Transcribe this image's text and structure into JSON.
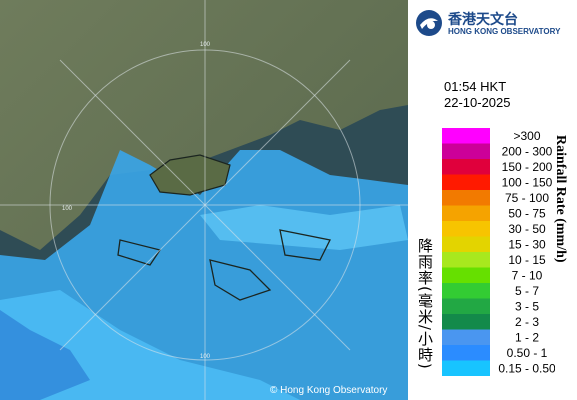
{
  "header": {
    "logo_chinese": "香港天文台",
    "logo_english": "HONG KONG OBSERVATORY"
  },
  "timestamp": {
    "time": "01:54 HKT",
    "date": "22-10-2025"
  },
  "legend": {
    "title_chinese": "降雨率(毫米/小時)",
    "title_english": "Rainfall Rate (mm/h)",
    "items": [
      {
        "label": ">300",
        "color": "#ff00ff"
      },
      {
        "label": "200 - 300",
        "color": "#cc0099"
      },
      {
        "label": "150 - 200",
        "color": "#e0003c"
      },
      {
        "label": "100 - 150",
        "color": "#ff1a00"
      },
      {
        "label": "75 - 100",
        "color": "#f27a00"
      },
      {
        "label": "50 - 75",
        "color": "#f5a300"
      },
      {
        "label": "30 - 50",
        "color": "#f7c400"
      },
      {
        "label": "15 - 30",
        "color": "#e3d400"
      },
      {
        "label": "10 - 15",
        "color": "#a8e81e"
      },
      {
        "label": "7 - 10",
        "color": "#66e000"
      },
      {
        "label": "5 - 7",
        "color": "#33cc33"
      },
      {
        "label": "3 - 5",
        "color": "#22a844"
      },
      {
        "label": "2 - 3",
        "color": "#138a4a"
      },
      {
        "label": "1 - 2",
        "color": "#4a96f0"
      },
      {
        "label": "0.50 - 1",
        "color": "#2b8cff"
      },
      {
        "label": "0.15 - 0.50",
        "color": "#18c4ff"
      }
    ]
  },
  "map": {
    "ring_labels": [
      "100",
      "100",
      "100"
    ],
    "copyright": "© Hong Kong Observatory"
  }
}
